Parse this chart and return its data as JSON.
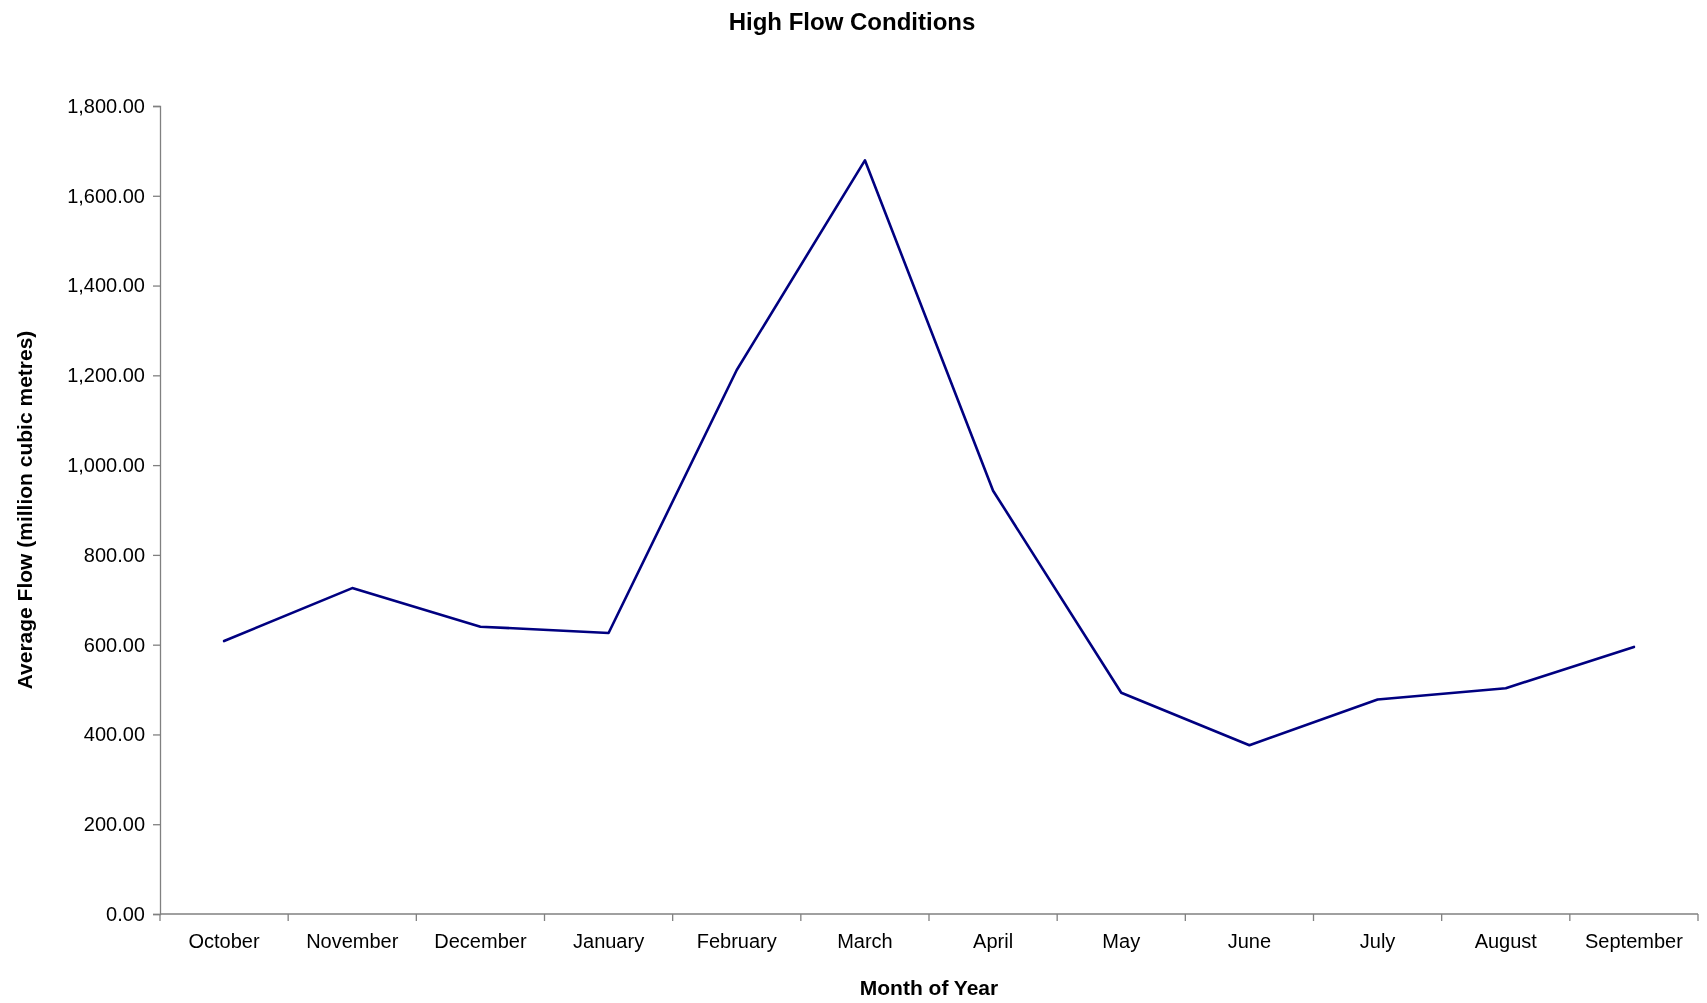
{
  "chart_data": {
    "type": "line",
    "title": "High Flow Conditions",
    "xlabel": "Month of Year",
    "ylabel": "Average Flow (million cubic metres)",
    "categories": [
      "October",
      "November",
      "December",
      "January",
      "February",
      "March",
      "April",
      "May",
      "June",
      "July",
      "August",
      "September"
    ],
    "series": [
      {
        "color": "#000080",
        "values": [
          608,
          726,
          640,
          626,
          1212,
          1679,
          943,
          493,
          376,
          478,
          503,
          595
        ]
      }
    ],
    "ylim": [
      0,
      1800
    ],
    "yticks": [
      {
        "value": 0,
        "label": "0.00"
      },
      {
        "value": 200,
        "label": "200.00"
      },
      {
        "value": 400,
        "label": "400.00"
      },
      {
        "value": 600,
        "label": "600.00"
      },
      {
        "value": 800,
        "label": "800.00"
      },
      {
        "value": 1000,
        "label": "1,000.00"
      },
      {
        "value": 1200,
        "label": "1,200.00"
      },
      {
        "value": 1400,
        "label": "1,400.00"
      },
      {
        "value": 1600,
        "label": "1,600.00"
      },
      {
        "value": 1800,
        "label": "1,800.00"
      }
    ]
  }
}
